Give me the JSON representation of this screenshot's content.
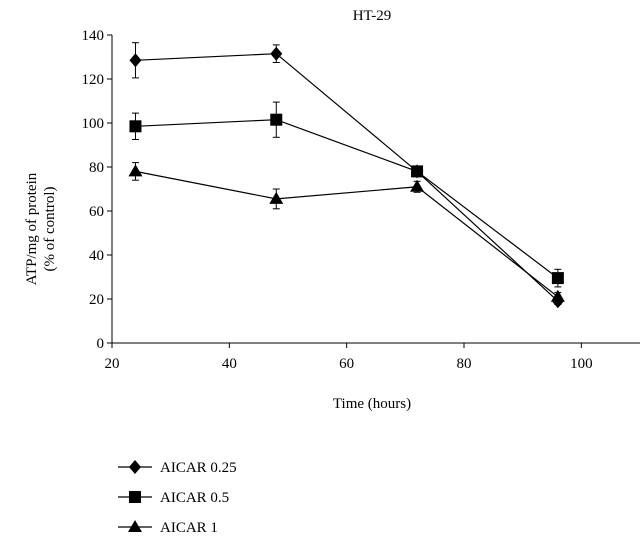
{
  "chart_data": {
    "type": "line",
    "title": "HT-29",
    "xlabel": "Time (hours)",
    "ylabel_lines": [
      "ATP/mg of protein",
      "(% of control)"
    ],
    "xlim": [
      20,
      110
    ],
    "ylim": [
      0,
      140
    ],
    "x_ticks": [
      20,
      40,
      60,
      80,
      100
    ],
    "y_ticks": [
      0,
      20,
      40,
      60,
      80,
      100,
      120,
      140
    ],
    "x": [
      24,
      48,
      72,
      96
    ],
    "grid": false,
    "legend_position": "bottom-left",
    "series": [
      {
        "name": "AICAR 0.25",
        "marker": "diamond",
        "values": [
          128.5,
          131.5,
          78,
          19
        ],
        "errors": [
          8,
          4,
          2,
          1.5
        ]
      },
      {
        "name": "AICAR 0.5",
        "marker": "square",
        "values": [
          98.5,
          101.5,
          78,
          29.5
        ],
        "errors": [
          6,
          8,
          2,
          4
        ]
      },
      {
        "name": "AICAR 1",
        "marker": "triangle",
        "values": [
          78,
          65.5,
          71,
          21
        ],
        "errors": [
          4,
          4.5,
          2.5,
          2
        ]
      }
    ]
  }
}
